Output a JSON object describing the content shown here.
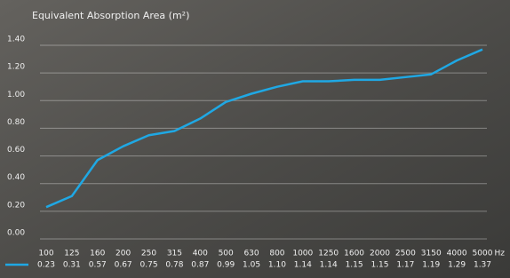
{
  "chart_data": {
    "type": "line",
    "title": "Equivalent Absorption Area (m²)",
    "categories": [
      100,
      125,
      160,
      200,
      250,
      315,
      400,
      500,
      630,
      800,
      1000,
      1250,
      1600,
      2000,
      2500,
      3150,
      4000,
      5000
    ],
    "xlabel": "Hz",
    "series": [
      {
        "color": "#1fa8e4",
        "values": [
          0.23,
          0.31,
          0.57,
          0.67,
          0.75,
          0.78,
          0.87,
          0.99,
          1.05,
          1.1,
          1.14,
          1.14,
          1.15,
          1.15,
          1.17,
          1.19,
          1.29,
          1.37
        ],
        "value_labels": [
          "0.23",
          "0.31",
          "0.57",
          "0.67",
          "0.75",
          "0.78",
          "0.87",
          "0.99",
          "1.05",
          "1.10",
          "1.14",
          "1.14",
          "1.15",
          "1.15",
          "1.17",
          "1.19",
          "1.29",
          "1.37"
        ]
      }
    ],
    "ylim": [
      0,
      1.4
    ],
    "yticks": [
      {
        "value": 0,
        "label": "0.00"
      },
      {
        "value": 0.2,
        "label": "0.20"
      },
      {
        "value": 0.4,
        "label": "0.40"
      },
      {
        "value": 0.6,
        "label": "0.60"
      },
      {
        "value": 0.8,
        "label": "0.80"
      },
      {
        "value": 1,
        "label": "1.00"
      },
      {
        "value": 1.2,
        "label": "1.20"
      },
      {
        "value": 1.4,
        "label": "1.40"
      }
    ],
    "grid": true
  }
}
